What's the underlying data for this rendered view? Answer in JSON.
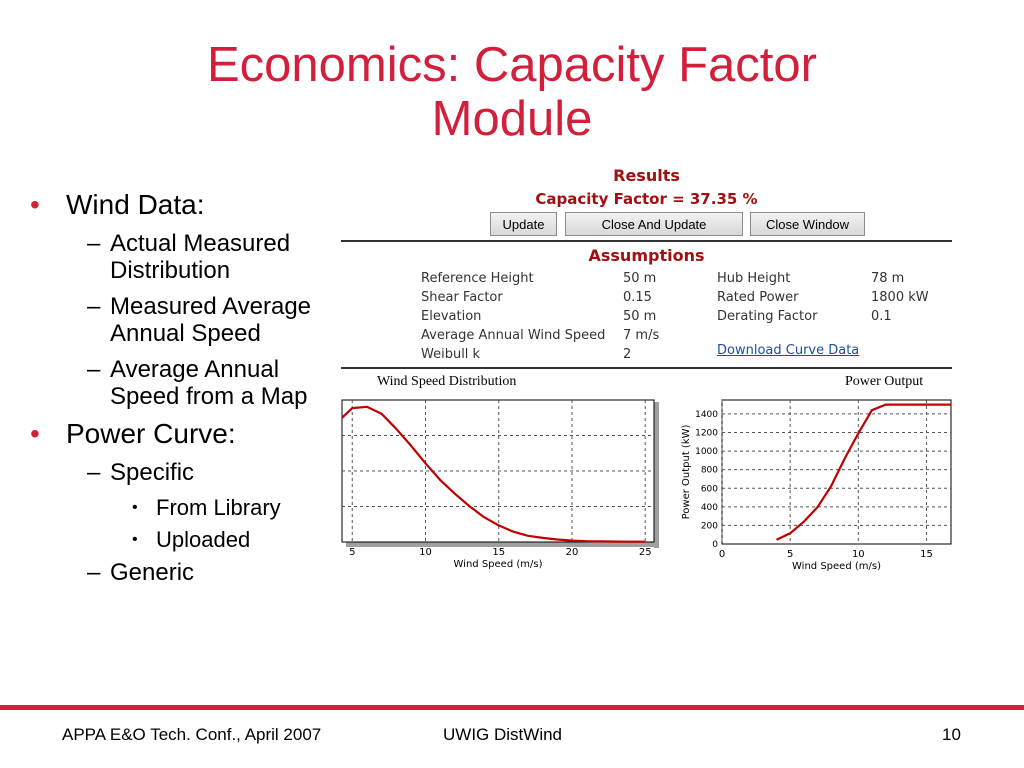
{
  "slide": {
    "title_line1": "Economics: Capacity Factor",
    "title_line2": "Module",
    "bullets": {
      "wind_data": "Wind Data:",
      "wind_sub1": "Actual Measured Distribution",
      "wind_sub2": "Measured Average Annual Speed",
      "wind_sub3": "Average Annual Speed from a Map",
      "power_curve": "Power Curve:",
      "specific": "Specific",
      "from_library": "From Library",
      "uploaded": "Uploaded",
      "generic": "Generic",
      "dash": "–",
      "dot": "•"
    }
  },
  "results": {
    "title": "Results",
    "capacity_factor": "Capacity Factor = 37.35 %",
    "buttons": {
      "update": "Update",
      "close_and_update": "Close And Update",
      "close_window": "Close Window"
    }
  },
  "assumptions": {
    "title": "Assumptions",
    "reference_height_label": "Reference Height",
    "reference_height": "50 m",
    "shear_factor_label": "Shear Factor",
    "shear_factor": "0.15",
    "elevation_label": "Elevation",
    "elevation": "50 m",
    "avg_wind_speed_label": "Average Annual Wind Speed",
    "avg_wind_speed": "7 m/s",
    "weibull_k_label": "Weibull k",
    "weibull_k": "2",
    "hub_height_label": "Hub Height",
    "hub_height": "78 m",
    "rated_power_label": "Rated Power",
    "rated_power": "1800 kW",
    "derating_factor_label": "Derating Factor",
    "derating_factor": "0.1",
    "download_link": "Download Curve Data"
  },
  "footer": {
    "left": "APPA E&O Tech. Conf., April 2007",
    "center": "UWIG DistWind",
    "page": "10"
  },
  "colors": {
    "title": "#d21f3c",
    "results": "#a01010",
    "curve": "#c00000",
    "footer_line": "#d21f3c"
  },
  "chart_data": [
    {
      "type": "line",
      "title": "Wind Speed Distribution",
      "xlabel": "Wind Speed (m/s)",
      "ylabel": "",
      "xlim": [
        4.3,
        25.6
      ],
      "xticks": [
        5,
        10,
        15,
        20,
        25
      ],
      "grid": true,
      "series": [
        {
          "x": [
            4.3,
            5,
            6,
            7,
            8,
            9,
            10,
            11,
            12,
            13,
            14,
            15,
            16,
            17,
            18,
            19,
            20,
            21,
            22,
            23,
            24,
            25
          ],
          "y": [
            0.9,
            0.97,
            0.98,
            0.93,
            0.82,
            0.7,
            0.57,
            0.45,
            0.35,
            0.26,
            0.18,
            0.12,
            0.075,
            0.045,
            0.03,
            0.018,
            0.01,
            0.006,
            0.004,
            0.003,
            0.002,
            0.002
          ]
        }
      ]
    },
    {
      "type": "line",
      "title": "Power Output",
      "xlabel": "Wind Speed (m/s)",
      "ylabel": "Power Output (kW)",
      "xlim": [
        0,
        16.8
      ],
      "ylim": [
        0,
        1550
      ],
      "xticks": [
        0,
        5,
        10,
        15
      ],
      "yticks": [
        0,
        200,
        400,
        600,
        800,
        1000,
        1200,
        1400
      ],
      "grid": true,
      "series": [
        {
          "x": [
            4,
            5,
            6,
            7,
            8,
            9,
            10,
            11,
            12,
            13,
            14,
            15,
            16.8
          ],
          "y": [
            45,
            115,
            240,
            395,
            620,
            920,
            1190,
            1440,
            1500,
            1500,
            1500,
            1500,
            1500
          ]
        }
      ]
    }
  ]
}
